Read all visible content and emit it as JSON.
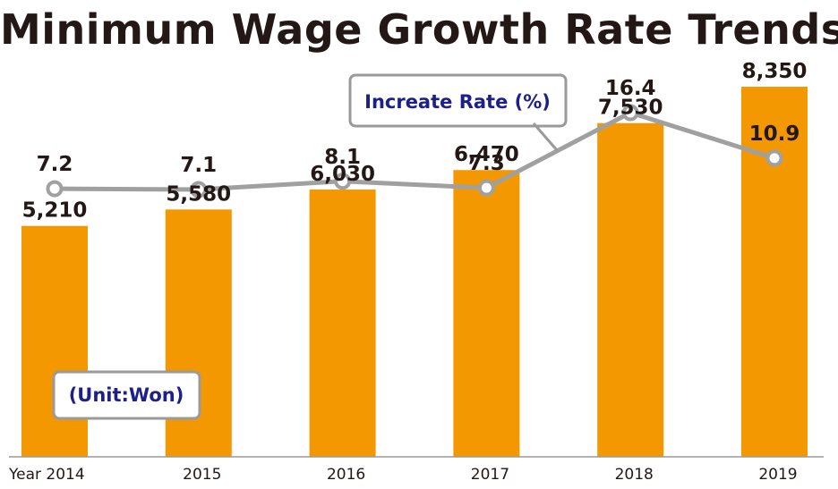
{
  "chart_data": {
    "type": "bar",
    "title": "Minimum Wage Growth Rate Trends",
    "categories": [
      "Year 2014",
      "2015",
      "2016",
      "2017",
      "2018",
      "2019"
    ],
    "series": [
      {
        "name": "Minimum Wage",
        "type": "bar",
        "values": [
          5210,
          5580,
          6030,
          6470,
          7530,
          8350
        ],
        "labels": [
          "5,210",
          "5,580",
          "6,030",
          "6,470",
          "7,530",
          "8,350"
        ]
      },
      {
        "name": "Increate Rate (%)",
        "type": "line",
        "values": [
          7.2,
          7.1,
          8.1,
          7.3,
          16.4,
          10.9
        ],
        "labels": [
          "7.2",
          "7.1",
          "8.1",
          "7.3",
          "16.4",
          "10.9"
        ]
      }
    ],
    "unit_note": "(Unit:Won)",
    "ylim": [
      0,
      9500
    ],
    "grid": false,
    "colors": {
      "bar": "#f39800",
      "line": "#a0a0a0",
      "callout_text": "#1d2088",
      "text": "#231815"
    }
  }
}
